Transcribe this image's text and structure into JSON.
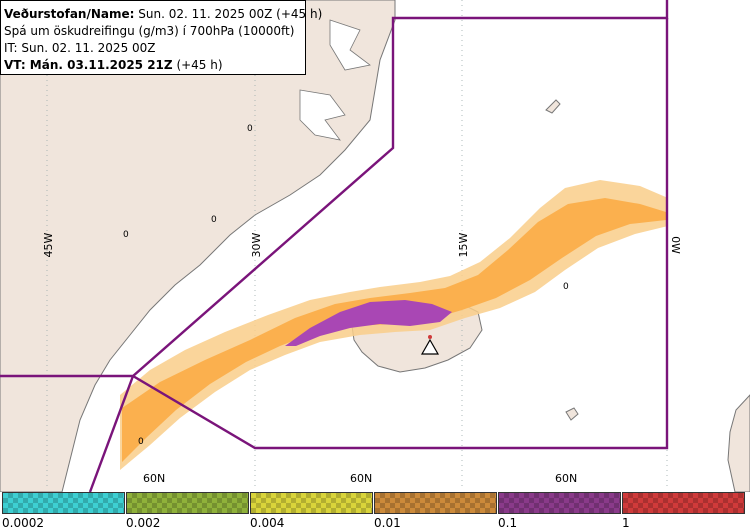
{
  "info": {
    "line1_label": "Veðurstofan/Name:",
    "line1_value": "Sun. 02. 11. 2025 00Z (+45 h)",
    "line2": "Spá um öskudreifingu (g/m3) í 700hPa (10000ft)",
    "line3": "IT: Sun. 02. 11. 2025 00Z",
    "line4_label": "VT: Mán. 03.11.2025 21Z",
    "line4_value": "(+45 h)"
  },
  "map": {
    "longitude_labels": [
      "45W",
      "30W",
      "15W",
      "0W"
    ],
    "latitude_labels": [
      "60N",
      "60N",
      "60N"
    ],
    "contour_labels": [
      "0",
      "0",
      "0",
      "0",
      "0"
    ],
    "colors": {
      "land": "#f0e5dc",
      "coast": "#777777",
      "boundary": "#7a147a",
      "ash_low": "#f9ce8a",
      "ash_mid": "#fbb04e",
      "ash_high": "#a947b4"
    }
  },
  "legend": {
    "ticks": [
      "0.0002",
      "0.002",
      "0.004",
      "0.01",
      "0.1",
      "1"
    ],
    "colors": [
      "#3dcfd2",
      "#8fb13a",
      "#d9d43a",
      "#cc8a3a",
      "#8a3a8a",
      "#d03a3a"
    ]
  }
}
